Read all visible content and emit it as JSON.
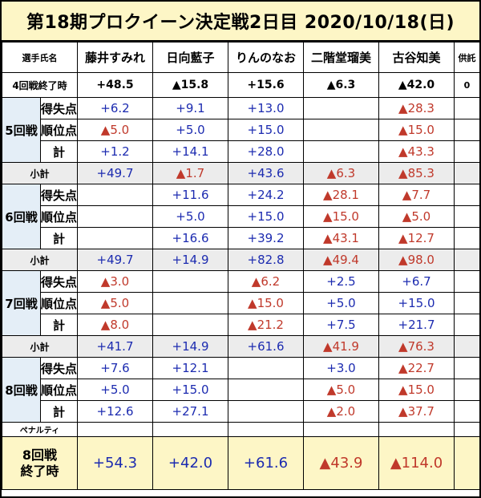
{
  "title": "第18期プロクイーン決定戦2日目 2020/10/18(日)",
  "header": {
    "player_label": "選手氏名",
    "players": [
      "藤井すみれ",
      "日向藍子",
      "りんのなお",
      "二階堂瑠美",
      "古谷知美"
    ],
    "extra": "供託"
  },
  "prev_total": {
    "label": "4回戦終了時",
    "values": [
      "+48.5",
      "▲15.8",
      "+15.6",
      "▲6.3",
      "▲42.0"
    ],
    "extra": "0"
  },
  "row_labels": {
    "score": "得失点",
    "rank": "順位点",
    "total": "計",
    "subtotal": "小計",
    "penalty": "ペナルティ",
    "final": "8回戦\n終了時"
  },
  "rounds": [
    {
      "label": "5回戦",
      "score": [
        "+6.2",
        "+9.1",
        "+13.0",
        "",
        "▲28.3"
      ],
      "rank": [
        "▲5.0",
        "+5.0",
        "+15.0",
        "",
        "▲15.0"
      ],
      "total": [
        "+1.2",
        "+14.1",
        "+28.0",
        "",
        "▲43.3"
      ],
      "subtotal": [
        "+49.7",
        "▲1.7",
        "+43.6",
        "▲6.3",
        "▲85.3"
      ]
    },
    {
      "label": "6回戦",
      "score": [
        "",
        "+11.6",
        "+24.2",
        "▲28.1",
        "▲7.7"
      ],
      "rank": [
        "",
        "+5.0",
        "+15.0",
        "▲15.0",
        "▲5.0"
      ],
      "total": [
        "",
        "+16.6",
        "+39.2",
        "▲43.1",
        "▲12.7"
      ],
      "subtotal": [
        "+49.7",
        "+14.9",
        "+82.8",
        "▲49.4",
        "▲98.0"
      ]
    },
    {
      "label": "7回戦",
      "score": [
        "▲3.0",
        "",
        "▲6.2",
        "+2.5",
        "+6.7"
      ],
      "rank": [
        "▲5.0",
        "",
        "▲15.0",
        "+5.0",
        "+15.0"
      ],
      "total": [
        "▲8.0",
        "",
        "▲21.2",
        "+7.5",
        "+21.7"
      ],
      "subtotal": [
        "+41.7",
        "+14.9",
        "+61.6",
        "▲41.9",
        "▲76.3"
      ]
    },
    {
      "label": "8回戦",
      "score": [
        "+7.6",
        "+12.1",
        "",
        "+3.0",
        "▲22.7"
      ],
      "rank": [
        "+5.0",
        "+15.0",
        "",
        "▲5.0",
        "▲15.0"
      ],
      "total": [
        "+12.6",
        "+27.1",
        "",
        "▲2.0",
        "▲37.7"
      ]
    }
  ],
  "final": {
    "values": [
      "+54.3",
      "+42.0",
      "+61.6",
      "▲43.9",
      "▲114.0"
    ]
  },
  "colors": {
    "positive": "#1c2bb0",
    "negative": "#c0392b",
    "title_bg": "#fdf6c6",
    "subtotal_bg": "#ececec",
    "round_label_bg": "#e4eef7"
  }
}
